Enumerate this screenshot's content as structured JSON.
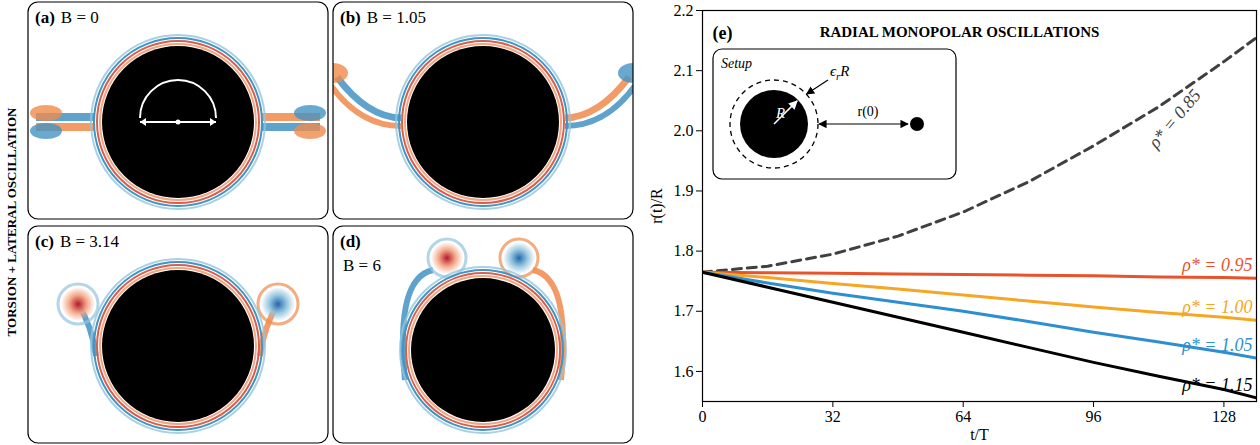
{
  "side_label": "TORSION + LATERAL OSCILLATION",
  "panels": [
    {
      "letter": "(a)",
      "label": "B = 0"
    },
    {
      "letter": "(b)",
      "label": "B = 1.05"
    },
    {
      "letter": "(c)",
      "label": "B = 3.14"
    },
    {
      "letter": "(d)",
      "label": "B = 6"
    }
  ],
  "inset": {
    "title": "Setup",
    "radius_label": "R",
    "shell_label": {
      "symbol": "ϵ",
      "subscript": "r",
      "tail": "R"
    },
    "distance_label": "r(0)"
  },
  "chart_data": {
    "type": "line",
    "panel_letter": "(e)",
    "title": "RADIAL MONOPOLAR OSCILLATIONS",
    "x_label": "t/T",
    "y_label": "r(t)/R",
    "xlim": [
      0,
      136
    ],
    "xticks": [
      0,
      32,
      64,
      96,
      128
    ],
    "ylim": [
      1.55,
      2.2
    ],
    "yticks": [
      1.6,
      1.7,
      1.8,
      1.9,
      {
        "value": 2,
        "label": "2.0"
      },
      2.1,
      2.2
    ],
    "grid": false,
    "x": [
      0,
      16,
      32,
      48,
      64,
      80,
      96,
      112,
      128,
      136
    ],
    "series": [
      {
        "name": "ρ* = 0.85",
        "color": "#404040",
        "line_style": "dashed",
        "values": [
          1.765,
          1.775,
          1.795,
          1.825,
          1.865,
          1.915,
          1.975,
          2.04,
          2.115,
          2.155
        ]
      },
      {
        "name": "ρ* = 0.95",
        "color": "#e8532b",
        "line_style": "solid",
        "values": [
          1.765,
          1.764,
          1.763,
          1.762,
          1.761,
          1.76,
          1.759,
          1.757,
          1.756,
          1.755
        ]
      },
      {
        "name": "ρ* = 1.00",
        "color": "#f5a623",
        "line_style": "solid",
        "values": [
          1.765,
          1.756,
          1.746,
          1.737,
          1.727,
          1.717,
          1.707,
          1.698,
          1.69,
          1.685
        ]
      },
      {
        "name": "ρ* = 1.05",
        "color": "#2e8fd0",
        "line_style": "solid",
        "values": [
          1.765,
          1.747,
          1.73,
          1.715,
          1.7,
          1.683,
          1.665,
          1.649,
          1.632,
          1.622
        ]
      },
      {
        "name": "ρ* = 1.15",
        "color": "#000000",
        "line_style": "solid",
        "values": [
          1.765,
          1.74,
          1.715,
          1.69,
          1.665,
          1.64,
          1.615,
          1.592,
          1.57,
          1.556
        ]
      }
    ]
  }
}
